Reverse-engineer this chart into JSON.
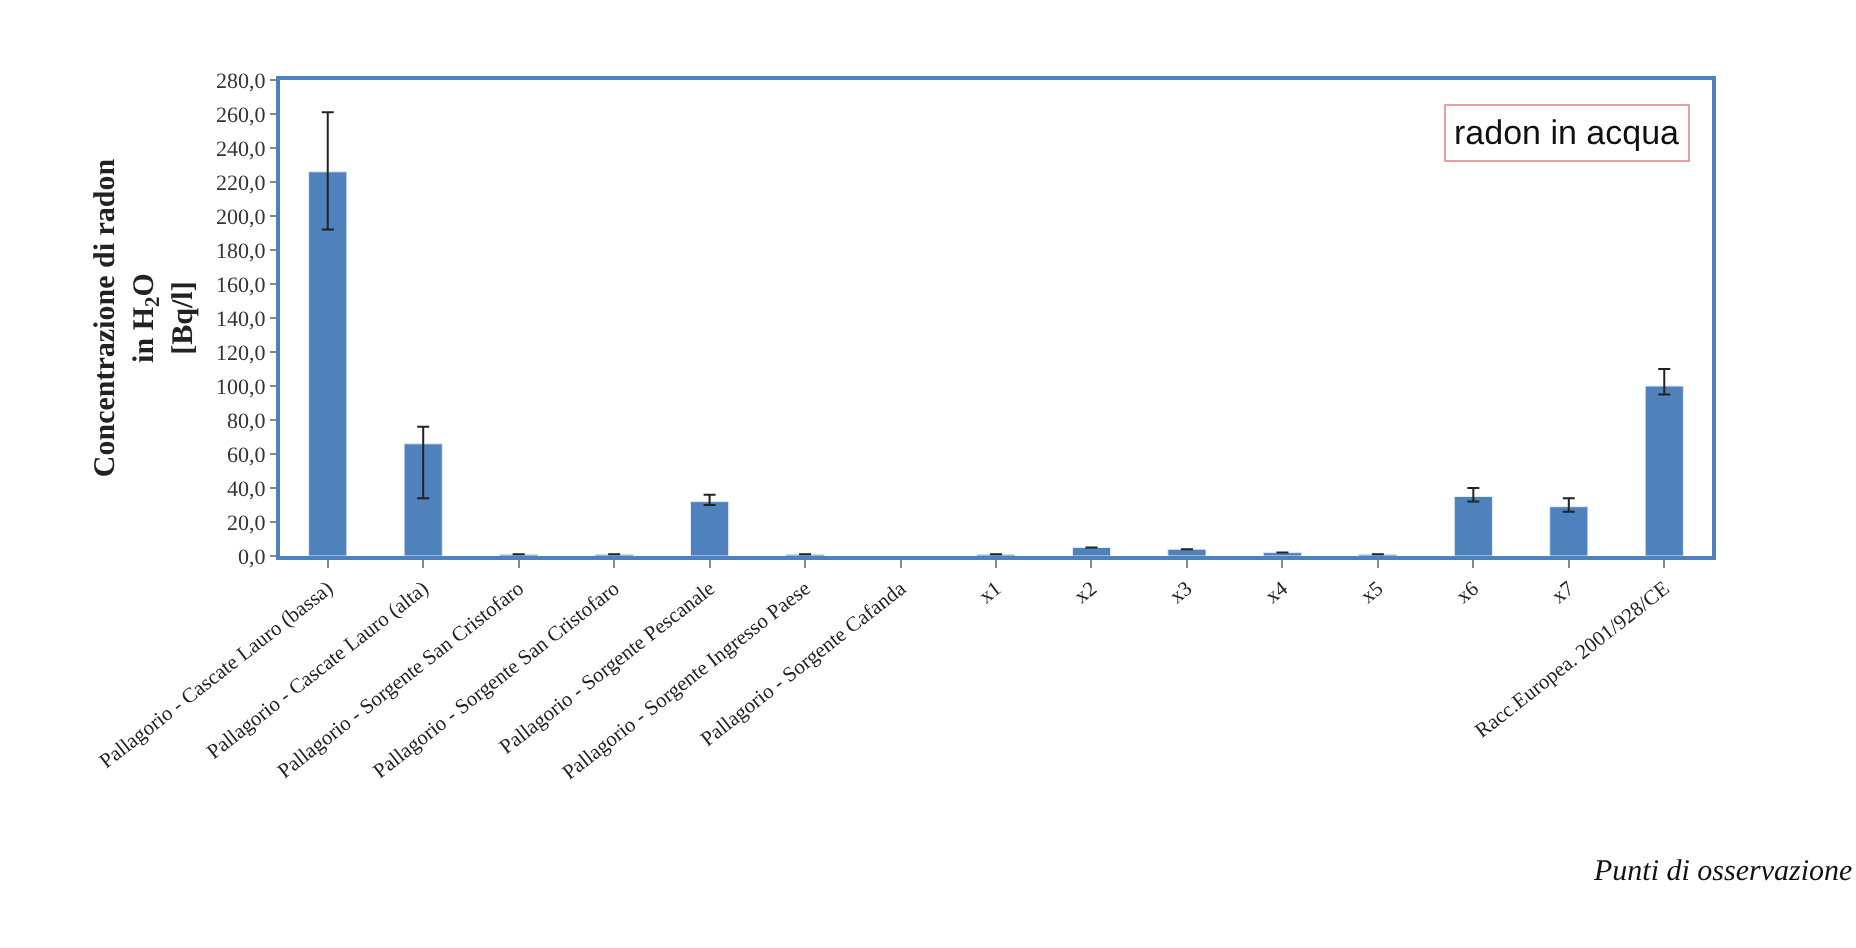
{
  "chart_data": {
    "type": "bar",
    "title": "radon in acqua",
    "xlabel": "Punti di osservazione",
    "ylabel": "Concentrazione di radon\nin H$_{2}$O\n[Bq/l]",
    "categories": [
      "Pallagorio - Cascate Lauro (bassa)",
      "Pallagorio - Cascate Lauro (alta)",
      "Pallagorio - Sorgente San Cristofaro",
      "Pallagorio - Sorgente San Cristofaro",
      "Pallagorio - Sorgente Pescanale",
      "Pallagorio - Sorgente Ingresso Paese",
      "Pallagorio - Sorgente Cafanda",
      "x1",
      "x2",
      "x3",
      "x4",
      "x5",
      "x6",
      "x7",
      "Racc.Europea. 2001/928/CE"
    ],
    "series": [
      {
        "color": "#4f81bd",
        "values": [
          226,
          66,
          1,
          1,
          32,
          1,
          null,
          1,
          5,
          4,
          2,
          1,
          35,
          29,
          100
        ],
        "errors": [
          [
            192,
            261
          ],
          [
            34,
            76
          ],
          null,
          null,
          [
            30,
            36
          ],
          null,
          null,
          null,
          null,
          null,
          null,
          null,
          [
            32,
            40
          ],
          [
            26,
            34
          ],
          [
            95,
            110
          ]
        ]
      }
    ],
    "ylim": [
      0,
      280
    ],
    "yticks": [
      {
        "value": 0,
        "label": "0,0"
      },
      {
        "value": 20,
        "label": "20,0"
      },
      {
        "value": 40,
        "label": "40,0"
      },
      {
        "value": 60,
        "label": "60,0"
      },
      {
        "value": 80,
        "label": "80,0"
      },
      {
        "value": 100,
        "label": "100,0"
      },
      {
        "value": 120,
        "label": "120,0"
      },
      {
        "value": 140,
        "label": "140,0"
      },
      {
        "value": 160,
        "label": "160,0"
      },
      {
        "value": 180,
        "label": "180,0"
      },
      {
        "value": 200,
        "label": "200,0"
      },
      {
        "value": 220,
        "label": "220,0"
      },
      {
        "value": 240,
        "label": "240,0"
      },
      {
        "value": 260,
        "label": "260,0"
      },
      {
        "value": 280,
        "label": "280,0"
      }
    ]
  }
}
